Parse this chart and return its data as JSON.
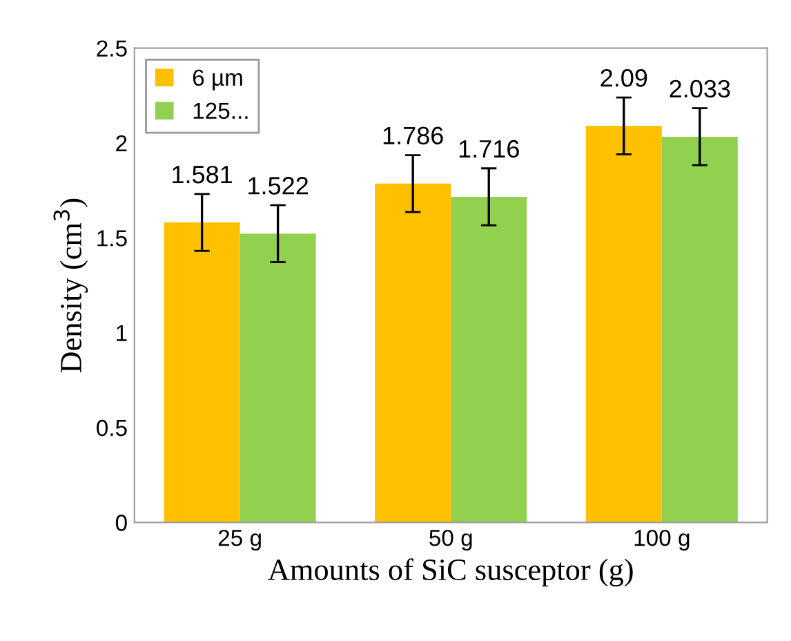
{
  "chart_data": {
    "type": "bar",
    "xlabel": "Amounts of SiC susceptor (g)",
    "ylabel": "Density (cm$^{3}$)",
    "categories": [
      "25 g",
      "50 g",
      "100 g"
    ],
    "series": [
      {
        "name": "6 µm",
        "color": "#ffc000",
        "values": [
          1.581,
          1.786,
          2.09
        ],
        "errors": [
          0.15,
          0.15,
          0.15
        ]
      },
      {
        "name": "125...",
        "color": "#92d050",
        "values": [
          1.522,
          1.716,
          2.033
        ],
        "errors": [
          0.15,
          0.15,
          0.15
        ]
      }
    ],
    "ylim": [
      0,
      2.5
    ],
    "yticks": [
      0,
      0.5,
      1,
      1.5,
      2,
      2.5
    ],
    "grid": false,
    "legend": "top left",
    "data_labels": true
  }
}
